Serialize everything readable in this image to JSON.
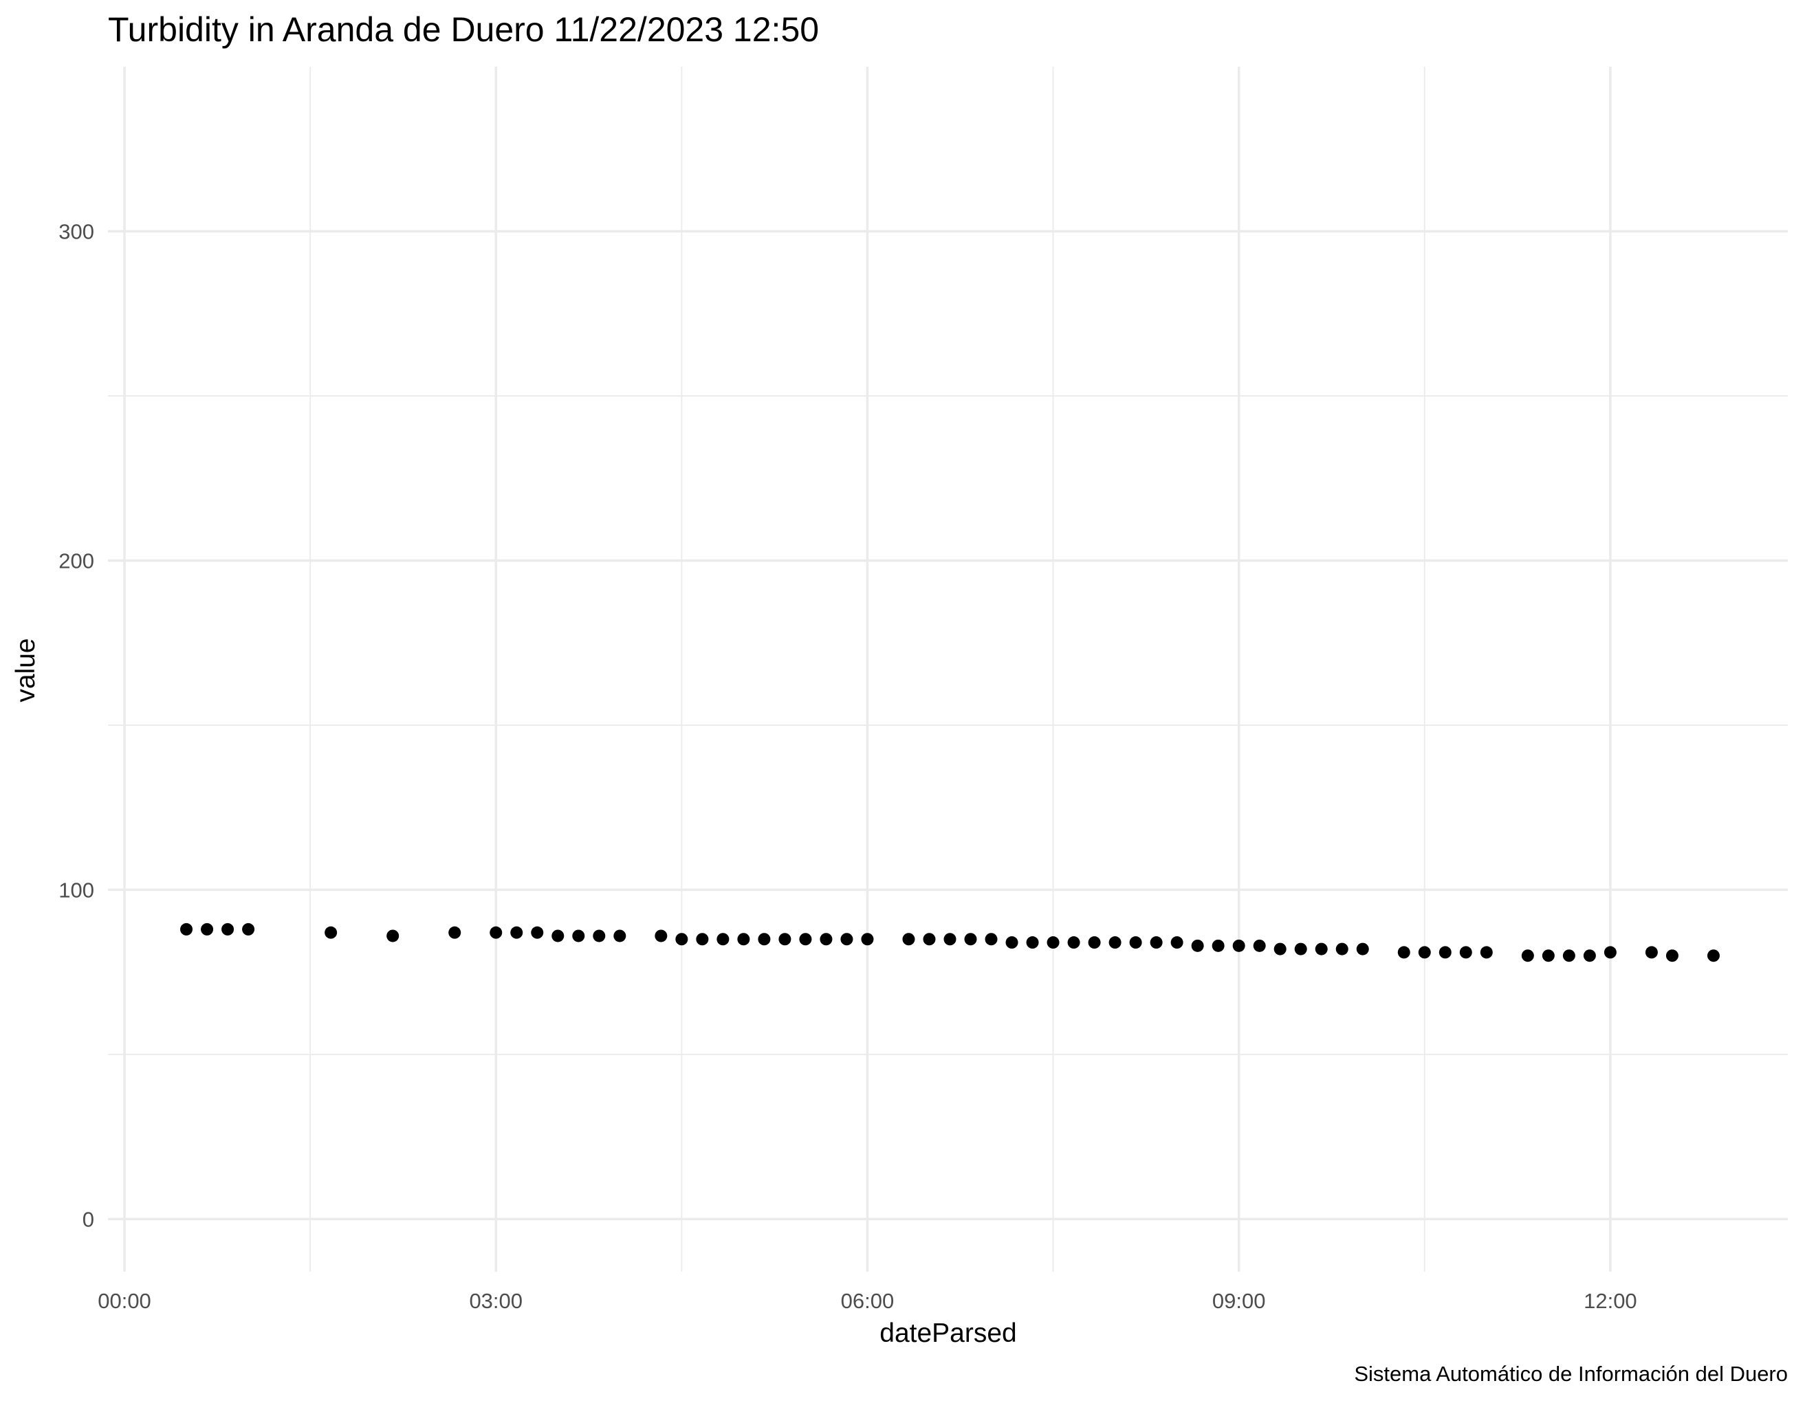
{
  "chart_data": {
    "type": "scatter",
    "title": "Turbidity in Aranda de Duero 11/22/2023 12:50",
    "xlabel": "dateParsed",
    "ylabel": "value",
    "caption": "Sistema Automático de Información del Duero",
    "x_ticks": [
      "00:00",
      "03:00",
      "06:00",
      "09:00",
      "12:00"
    ],
    "y_ticks": [
      "0",
      "100",
      "200",
      "300"
    ],
    "x_range": [
      "-00:08",
      "13:26"
    ],
    "y_range": [
      -16,
      350
    ],
    "grid": true,
    "point_color": "#000000",
    "points": [
      {
        "x": "00:30",
        "y": 88
      },
      {
        "x": "00:40",
        "y": 88
      },
      {
        "x": "00:50",
        "y": 88
      },
      {
        "x": "01:00",
        "y": 88
      },
      {
        "x": "01:40",
        "y": 87
      },
      {
        "x": "02:10",
        "y": 86
      },
      {
        "x": "02:40",
        "y": 87
      },
      {
        "x": "03:00",
        "y": 87
      },
      {
        "x": "03:10",
        "y": 87
      },
      {
        "x": "03:20",
        "y": 87
      },
      {
        "x": "03:30",
        "y": 86
      },
      {
        "x": "03:40",
        "y": 86
      },
      {
        "x": "03:50",
        "y": 86
      },
      {
        "x": "04:00",
        "y": 86
      },
      {
        "x": "04:20",
        "y": 86
      },
      {
        "x": "04:30",
        "y": 85
      },
      {
        "x": "04:40",
        "y": 85
      },
      {
        "x": "04:50",
        "y": 85
      },
      {
        "x": "05:00",
        "y": 85
      },
      {
        "x": "05:10",
        "y": 85
      },
      {
        "x": "05:20",
        "y": 85
      },
      {
        "x": "05:30",
        "y": 85
      },
      {
        "x": "05:40",
        "y": 85
      },
      {
        "x": "05:50",
        "y": 85
      },
      {
        "x": "06:00",
        "y": 85
      },
      {
        "x": "06:20",
        "y": 85
      },
      {
        "x": "06:30",
        "y": 85
      },
      {
        "x": "06:40",
        "y": 85
      },
      {
        "x": "06:50",
        "y": 85
      },
      {
        "x": "07:00",
        "y": 85
      },
      {
        "x": "07:10",
        "y": 84
      },
      {
        "x": "07:20",
        "y": 84
      },
      {
        "x": "07:30",
        "y": 84
      },
      {
        "x": "07:40",
        "y": 84
      },
      {
        "x": "07:50",
        "y": 84
      },
      {
        "x": "08:00",
        "y": 84
      },
      {
        "x": "08:10",
        "y": 84
      },
      {
        "x": "08:20",
        "y": 84
      },
      {
        "x": "08:30",
        "y": 84
      },
      {
        "x": "08:40",
        "y": 83
      },
      {
        "x": "08:50",
        "y": 83
      },
      {
        "x": "09:00",
        "y": 83
      },
      {
        "x": "09:10",
        "y": 83
      },
      {
        "x": "09:20",
        "y": 82
      },
      {
        "x": "09:30",
        "y": 82
      },
      {
        "x": "09:40",
        "y": 82
      },
      {
        "x": "09:50",
        "y": 82
      },
      {
        "x": "10:00",
        "y": 82
      },
      {
        "x": "10:20",
        "y": 81
      },
      {
        "x": "10:30",
        "y": 81
      },
      {
        "x": "10:40",
        "y": 81
      },
      {
        "x": "10:50",
        "y": 81
      },
      {
        "x": "11:00",
        "y": 81
      },
      {
        "x": "11:20",
        "y": 80
      },
      {
        "x": "11:30",
        "y": 80
      },
      {
        "x": "11:40",
        "y": 80
      },
      {
        "x": "11:50",
        "y": 80
      },
      {
        "x": "12:00",
        "y": 81
      },
      {
        "x": "12:20",
        "y": 81
      },
      {
        "x": "12:30",
        "y": 80
      },
      {
        "x": "12:50",
        "y": 80
      }
    ]
  }
}
